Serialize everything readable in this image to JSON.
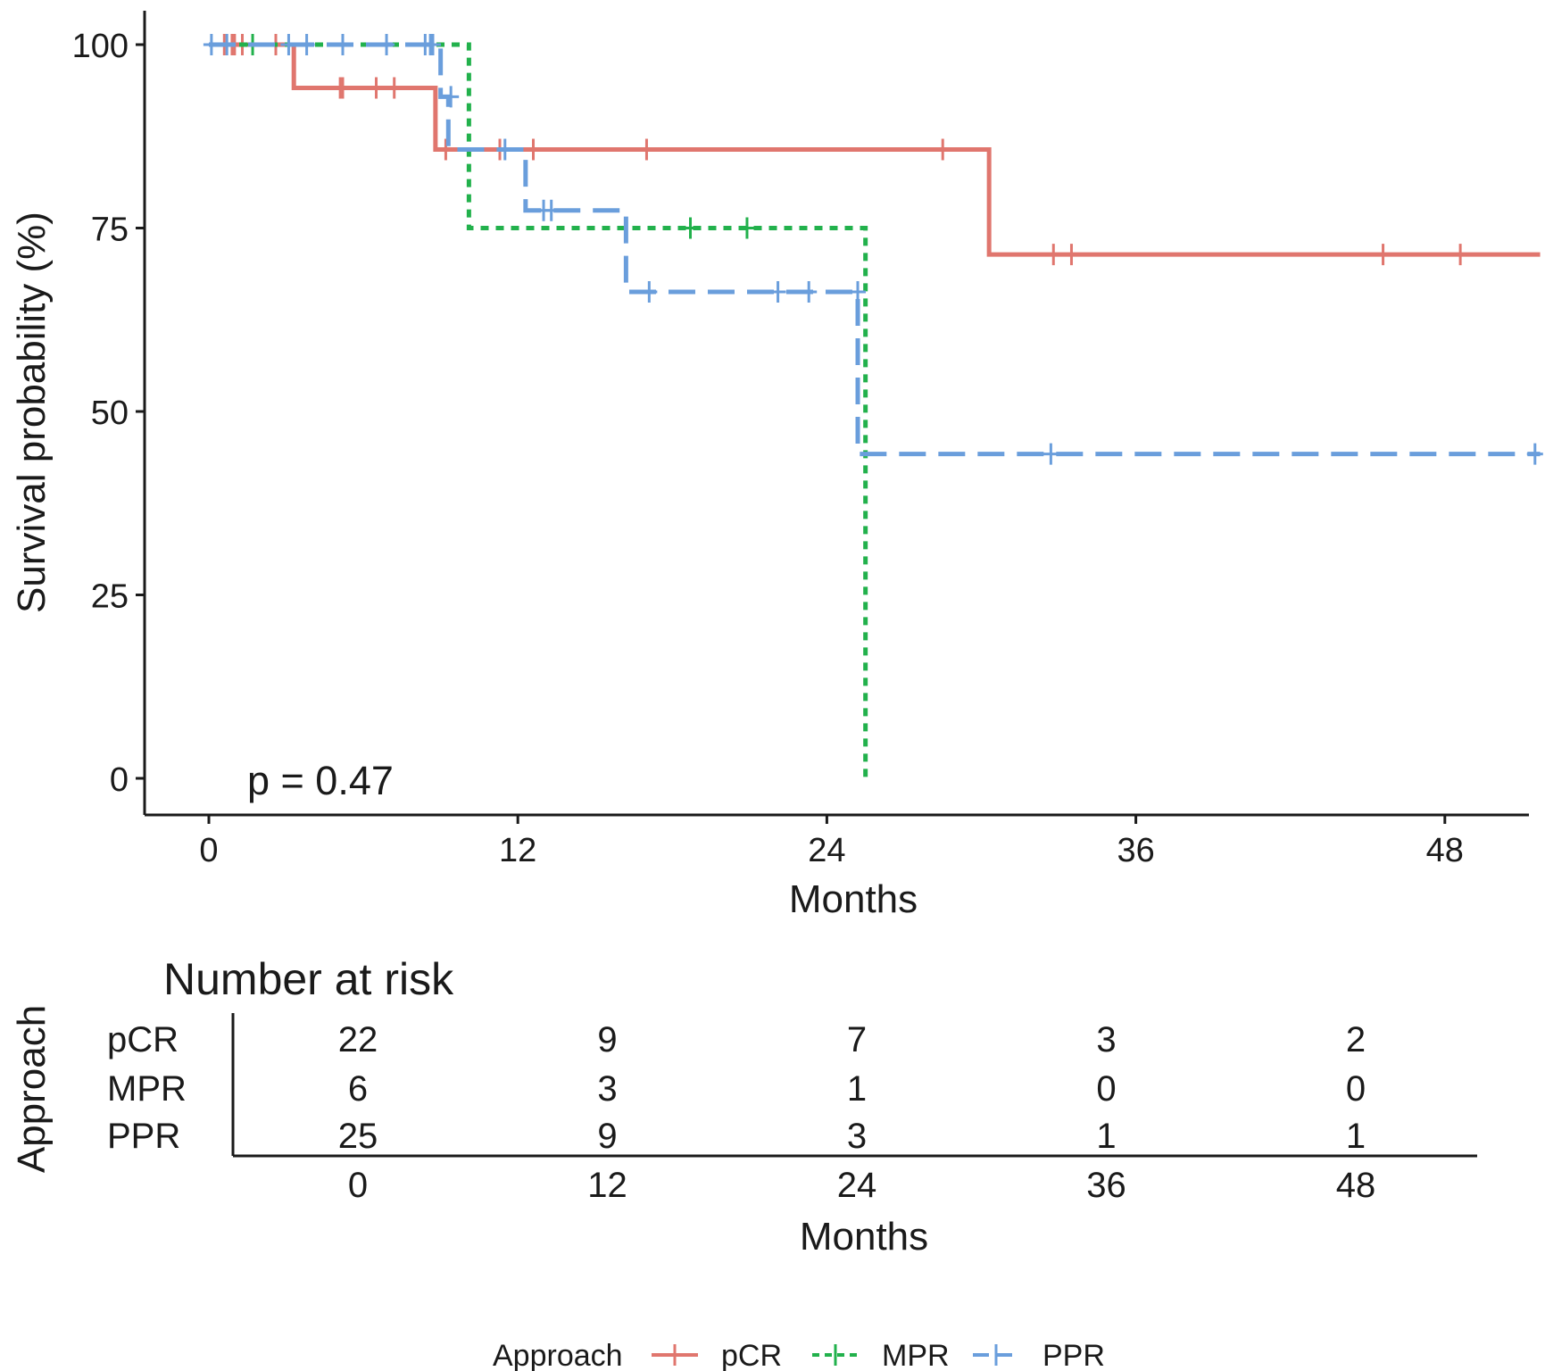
{
  "colors": {
    "pCR": "#E0766E",
    "MPR": "#22B14C",
    "PPR": "#6A9EDC",
    "axis": "#1a1a1a"
  },
  "chart_data": [
    {
      "type": "line",
      "subtype": "kaplan-meier",
      "title": "",
      "xlabel": "Months",
      "ylabel": "Survival probability (%)",
      "xlim": [
        0,
        52
      ],
      "ylim": [
        0,
        100
      ],
      "xticks": [
        "0",
        "12",
        "24",
        "36",
        "48"
      ],
      "yticks": [
        "0",
        "25",
        "50",
        "75",
        "100"
      ],
      "annotation": "p = 0.47",
      "series": [
        {
          "name": "pCR",
          "line_style": "solid",
          "steps": [
            [
              0,
              100
            ],
            [
              3.3,
              94.1
            ],
            [
              8.8,
              85.7
            ],
            [
              30.3,
              71.4
            ],
            [
              51.7,
              71.4
            ]
          ],
          "censored": [
            [
              0.6,
              100
            ],
            [
              0.9,
              100
            ],
            [
              1.0,
              100
            ],
            [
              1.3,
              100
            ],
            [
              2.6,
              100
            ],
            [
              5.1,
              94.1
            ],
            [
              5.2,
              94.1
            ],
            [
              6.5,
              94.1
            ],
            [
              7.2,
              94.1
            ],
            [
              9.2,
              85.7
            ],
            [
              11.3,
              85.7
            ],
            [
              12.6,
              85.7
            ],
            [
              17.0,
              85.7
            ],
            [
              28.5,
              85.7
            ],
            [
              32.8,
              71.4
            ],
            [
              33.5,
              71.4
            ],
            [
              45.6,
              71.4
            ],
            [
              48.6,
              71.4
            ]
          ]
        },
        {
          "name": "MPR",
          "line_style": "dotted",
          "steps": [
            [
              0,
              100
            ],
            [
              10.1,
              75
            ],
            [
              25.5,
              0
            ]
          ],
          "censored": [
            [
              1.7,
              100
            ],
            [
              18.7,
              75
            ],
            [
              20.9,
              75
            ]
          ]
        },
        {
          "name": "PPR",
          "line_style": "dashed",
          "steps": [
            [
              0,
              100
            ],
            [
              9.0,
              92.9
            ],
            [
              9.3,
              85.7
            ],
            [
              12.3,
              77.4
            ],
            [
              16.2,
              66.3
            ],
            [
              25.2,
              44.2
            ],
            [
              51.7,
              44.2
            ]
          ],
          "censored": [
            [
              0.1,
              100
            ],
            [
              0.7,
              100
            ],
            [
              3.1,
              100
            ],
            [
              3.8,
              100
            ],
            [
              5.2,
              100
            ],
            [
              6.9,
              100
            ],
            [
              8.4,
              100
            ],
            [
              8.6,
              100
            ],
            [
              8.7,
              100
            ],
            [
              9.4,
              92.9
            ],
            [
              11.5,
              85.7
            ],
            [
              13.0,
              77.4
            ],
            [
              13.3,
              77.4
            ],
            [
              17.1,
              66.3
            ],
            [
              22.1,
              66.3
            ],
            [
              23.3,
              66.3
            ],
            [
              25.2,
              66.3
            ],
            [
              32.7,
              44.2
            ],
            [
              51.5,
              44.2
            ]
          ]
        }
      ]
    },
    {
      "type": "table",
      "title": "Number at risk",
      "ylabel": "Approach",
      "xlabel": "Months",
      "columns": [
        "0",
        "12",
        "24",
        "36",
        "48"
      ],
      "rows": [
        {
          "name": "pCR",
          "values": [
            "22",
            "9",
            "7",
            "3",
            "2"
          ]
        },
        {
          "name": "MPR",
          "values": [
            "6",
            "3",
            "1",
            "0",
            "0"
          ]
        },
        {
          "name": "PPR",
          "values": [
            "25",
            "9",
            "3",
            "1",
            "1"
          ]
        }
      ]
    }
  ],
  "legend": {
    "title": "Approach",
    "items": [
      "pCR",
      "MPR",
      "PPR"
    ]
  }
}
